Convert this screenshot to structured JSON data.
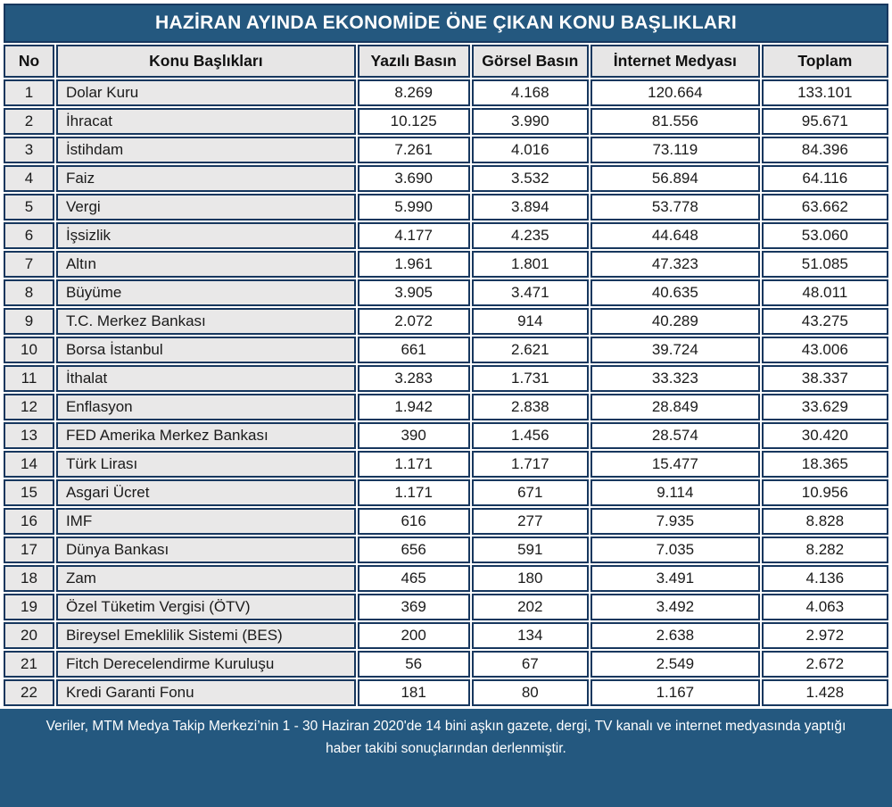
{
  "title": "HAZİRAN AYINDA EKONOMİDE ÖNE ÇIKAN KONU BAŞLIKLARI",
  "footer": {
    "text": "Veriler, MTM Medya Takip Merkezi’nin 1 - 30 Haziran 2020'de 14 bini aşkın gazete, dergi, TV kanalı ve internet medyasında yaptığı haber takibi sonuçlarından derlenmiştir."
  },
  "colors": {
    "banner_bg": "#24587F",
    "border": "#17375E",
    "header_bg": "#E7E6E6",
    "label_bg": "#E9E8E8",
    "text": "#1A1A1A",
    "banner_text": "#FFFFFF"
  },
  "chart_data": {
    "type": "table",
    "title": "HAZİRAN AYINDA EKONOMİDE ÖNE ÇIKAN KONU BAŞLIKLARI",
    "columns": [
      "No",
      "Konu Başlıkları",
      "Yazılı Basın",
      "Görsel Basın",
      "İnternet Medyası",
      "Toplam"
    ],
    "rows": [
      {
        "no": "1",
        "topic": "Dolar Kuru",
        "yazili": "8.269",
        "gorsel": "4.168",
        "internet": "120.664",
        "toplam": "133.101"
      },
      {
        "no": "2",
        "topic": "İhracat",
        "yazili": "10.125",
        "gorsel": "3.990",
        "internet": "81.556",
        "toplam": "95.671"
      },
      {
        "no": "3",
        "topic": "İstihdam",
        "yazili": "7.261",
        "gorsel": "4.016",
        "internet": "73.119",
        "toplam": "84.396"
      },
      {
        "no": "4",
        "topic": "Faiz",
        "yazili": "3.690",
        "gorsel": "3.532",
        "internet": "56.894",
        "toplam": "64.116"
      },
      {
        "no": "5",
        "topic": "Vergi",
        "yazili": "5.990",
        "gorsel": "3.894",
        "internet": "53.778",
        "toplam": "63.662"
      },
      {
        "no": "6",
        "topic": "İşsizlik",
        "yazili": "4.177",
        "gorsel": "4.235",
        "internet": "44.648",
        "toplam": "53.060"
      },
      {
        "no": "7",
        "topic": "Altın",
        "yazili": "1.961",
        "gorsel": "1.801",
        "internet": "47.323",
        "toplam": "51.085"
      },
      {
        "no": "8",
        "topic": "Büyüme",
        "yazili": "3.905",
        "gorsel": "3.471",
        "internet": "40.635",
        "toplam": "48.011"
      },
      {
        "no": "9",
        "topic": "T.C. Merkez Bankası",
        "yazili": "2.072",
        "gorsel": "914",
        "internet": "40.289",
        "toplam": "43.275"
      },
      {
        "no": "10",
        "topic": "Borsa İstanbul",
        "yazili": "661",
        "gorsel": "2.621",
        "internet": "39.724",
        "toplam": "43.006"
      },
      {
        "no": "11",
        "topic": "İthalat",
        "yazili": "3.283",
        "gorsel": "1.731",
        "internet": "33.323",
        "toplam": "38.337"
      },
      {
        "no": "12",
        "topic": "Enflasyon",
        "yazili": "1.942",
        "gorsel": "2.838",
        "internet": "28.849",
        "toplam": "33.629"
      },
      {
        "no": "13",
        "topic": "FED Amerika Merkez Bankası",
        "yazili": "390",
        "gorsel": "1.456",
        "internet": "28.574",
        "toplam": "30.420"
      },
      {
        "no": "14",
        "topic": "Türk Lirası",
        "yazili": "1.171",
        "gorsel": "1.717",
        "internet": "15.477",
        "toplam": "18.365"
      },
      {
        "no": "15",
        "topic": "Asgari Ücret",
        "yazili": "1.171",
        "gorsel": "671",
        "internet": "9.114",
        "toplam": "10.956"
      },
      {
        "no": "16",
        "topic": "IMF",
        "yazili": "616",
        "gorsel": "277",
        "internet": "7.935",
        "toplam": "8.828"
      },
      {
        "no": "17",
        "topic": "Dünya Bankası",
        "yazili": "656",
        "gorsel": "591",
        "internet": "7.035",
        "toplam": "8.282"
      },
      {
        "no": "18",
        "topic": "Zam",
        "yazili": "465",
        "gorsel": "180",
        "internet": "3.491",
        "toplam": "4.136"
      },
      {
        "no": "19",
        "topic": "Özel Tüketim Vergisi (ÖTV)",
        "yazili": "369",
        "gorsel": "202",
        "internet": "3.492",
        "toplam": "4.063"
      },
      {
        "no": "20",
        "topic": "Bireysel Emeklilik Sistemi (BES)",
        "yazili": "200",
        "gorsel": "134",
        "internet": "2.638",
        "toplam": "2.972"
      },
      {
        "no": "21",
        "topic": "Fitch Derecelendirme Kuruluşu",
        "yazili": "56",
        "gorsel": "67",
        "internet": "2.549",
        "toplam": "2.672"
      },
      {
        "no": "22",
        "topic": "Kredi Garanti Fonu",
        "yazili": "181",
        "gorsel": "80",
        "internet": "1.167",
        "toplam": "1.428"
      }
    ]
  }
}
